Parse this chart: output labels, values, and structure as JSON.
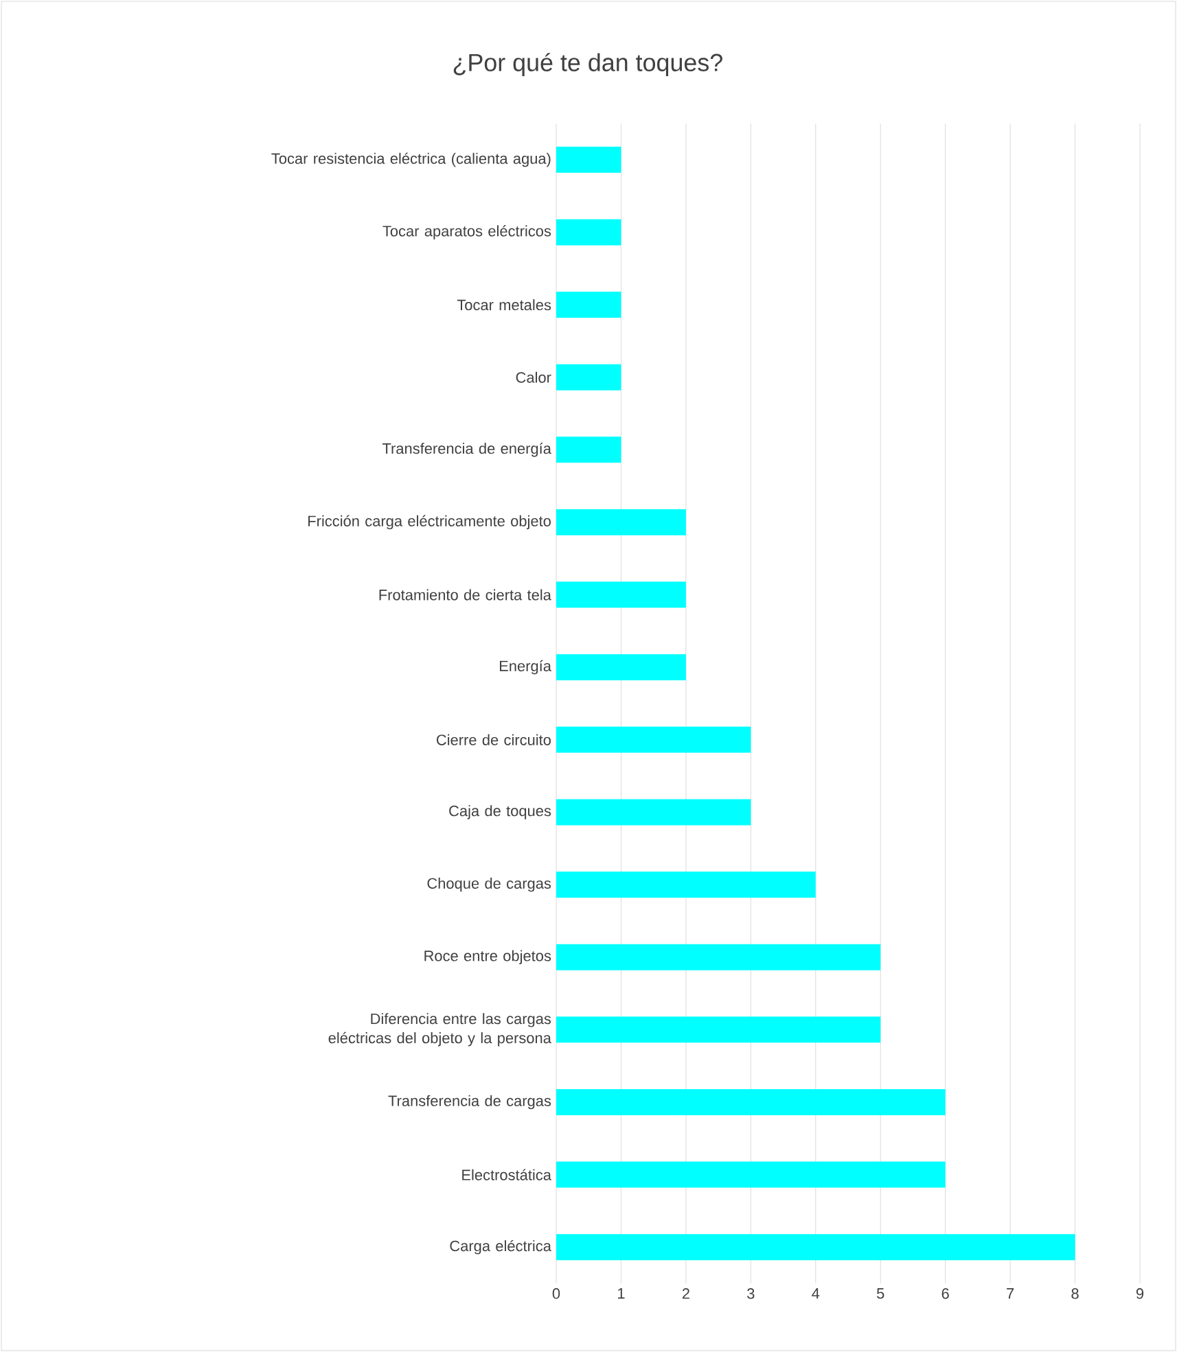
{
  "chart_data": {
    "type": "bar",
    "orientation": "horizontal",
    "title": "¿Por qué te dan toques?",
    "categories": [
      "Tocar resistencia eléctrica (calienta agua)",
      "Tocar aparatos eléctricos",
      "Tocar metales",
      "Calor",
      "Transferencia de energía",
      "Fricción carga eléctricamente objeto",
      "Frotamiento de cierta tela",
      "Energía",
      "Cierre de circuito",
      "Caja de toques",
      "Choque de cargas",
      "Roce entre objetos",
      "Diferencia entre las cargas eléctricas del objeto y la persona",
      "Transferencia de cargas",
      "Electrostática",
      "Carga eléctrica"
    ],
    "values": [
      1,
      1,
      1,
      1,
      1,
      2,
      2,
      2,
      3,
      3,
      4,
      5,
      5,
      6,
      6,
      8
    ],
    "color": "#00ffff",
    "xlim": [
      0,
      9
    ],
    "xticks": [
      0,
      1,
      2,
      3,
      4,
      5,
      6,
      7,
      8,
      9
    ],
    "grid": "x"
  }
}
